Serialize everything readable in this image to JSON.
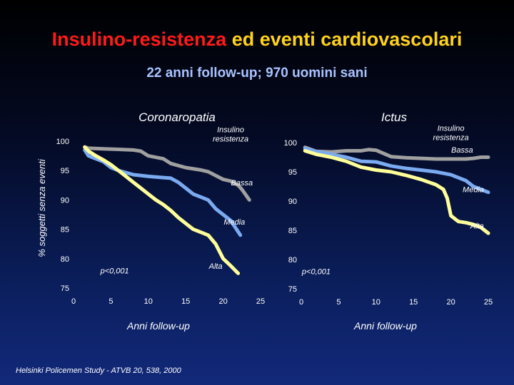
{
  "title_part1": "Insulino-resistenza",
  "title_part2": " ed eventi cardiovascolari",
  "subtitle": "22 anni follow-up; 970 uomini sani",
  "source": "Helsinki Policemen Study - ATVB 20, 538, 2000",
  "colors": {
    "bassa": "#a0a0a0",
    "media": "#7aaaf0",
    "alta": "#ffff99"
  },
  "chart_data": [
    {
      "type": "line",
      "title": "Coronaropatia",
      "xlabel": "Anni follow-up",
      "ylabel": "% soggetti senza eventi",
      "xlim": [
        0,
        25
      ],
      "ylim": [
        75,
        100
      ],
      "xticks": [
        0,
        5,
        10,
        15,
        20,
        25
      ],
      "yticks": [
        75,
        80,
        85,
        90,
        95,
        100
      ],
      "annotations": [
        {
          "text": "Insulino\nresistenza",
          "x": 21.0,
          "y": 101.5
        },
        {
          "text": "p<0,001",
          "x": 5.5,
          "y": 77.5
        }
      ],
      "series": [
        {
          "name": "Bassa",
          "label_x": 22.5,
          "label_y": 92.5,
          "x": [
            1.5,
            2,
            4,
            6,
            8,
            9,
            10,
            12,
            13,
            15,
            17,
            18,
            20,
            21,
            22,
            22.5,
            23.5
          ],
          "y": [
            99.0,
            98.8,
            98.7,
            98.6,
            98.5,
            98.3,
            97.5,
            97.0,
            96.2,
            95.5,
            95.1,
            94.8,
            93.5,
            93.2,
            92.5,
            91.8,
            90.0
          ]
        },
        {
          "name": "Media",
          "label_x": 21.5,
          "label_y": 85.8,
          "x": [
            1.5,
            2,
            3,
            4,
            5,
            6,
            8,
            10,
            12,
            13,
            14,
            15,
            16,
            18,
            19,
            20,
            21,
            22.3
          ],
          "y": [
            98.5,
            97.5,
            97.0,
            96.5,
            95.5,
            95.0,
            94.3,
            94.0,
            93.8,
            93.7,
            93.0,
            92.0,
            91.0,
            90.0,
            88.5,
            87.5,
            86.5,
            84.0
          ]
        },
        {
          "name": "Alta",
          "label_x": 19.0,
          "label_y": 78.3,
          "x": [
            1.5,
            2,
            3,
            4,
            5,
            6,
            7,
            8,
            9,
            10,
            11,
            12,
            13,
            14,
            15,
            16,
            17,
            18,
            19,
            20,
            21,
            22
          ],
          "y": [
            99.0,
            98.3,
            97.5,
            96.8,
            96.0,
            95.0,
            94.0,
            93.0,
            92.0,
            91.0,
            90.0,
            89.2,
            88.2,
            87.0,
            86.0,
            85.0,
            84.5,
            84.0,
            82.5,
            80.0,
            78.8,
            77.5
          ]
        }
      ]
    },
    {
      "type": "line",
      "title": "Ictus",
      "xlabel": "Anni follow-up",
      "ylabel": "",
      "xlim": [
        0,
        25
      ],
      "ylim": [
        75,
        100
      ],
      "xticks": [
        0,
        5,
        10,
        15,
        20,
        25
      ],
      "yticks": [
        75,
        80,
        85,
        90,
        95,
        100
      ],
      "annotations": [
        {
          "text": "Insulino\nresistenza",
          "x": 20.0,
          "y": 102.0
        },
        {
          "text": "p<0,001",
          "x": 2.0,
          "y": 77.5
        }
      ],
      "series": [
        {
          "name": "Bassa",
          "label_x": 21.5,
          "label_y": 98.3,
          "x": [
            0.5,
            2,
            4,
            6,
            8,
            9,
            10,
            12,
            14,
            16,
            18,
            20,
            21,
            22,
            23,
            24,
            25
          ],
          "y": [
            99.2,
            98.5,
            98.4,
            98.6,
            98.6,
            98.8,
            98.7,
            97.6,
            97.4,
            97.3,
            97.2,
            97.2,
            97.2,
            97.2,
            97.3,
            97.5,
            97.5
          ]
        },
        {
          "name": "Media",
          "label_x": 23.0,
          "label_y": 91.5,
          "x": [
            0.5,
            2,
            4,
            6,
            8,
            10,
            12,
            14,
            16,
            18,
            20,
            21,
            22,
            23,
            24,
            25
          ],
          "y": [
            99.0,
            98.5,
            98.0,
            97.5,
            96.8,
            96.7,
            96.0,
            95.6,
            95.3,
            95.0,
            94.5,
            94.0,
            93.5,
            92.5,
            92.0,
            91.5
          ]
        },
        {
          "name": "Alta",
          "label_x": 23.5,
          "label_y": 85.3,
          "x": [
            0.5,
            2,
            4,
            6,
            8,
            10,
            12,
            14,
            16,
            18,
            19,
            19.5,
            20,
            21,
            22,
            23,
            24,
            25
          ],
          "y": [
            98.6,
            98.0,
            97.5,
            96.8,
            95.8,
            95.3,
            95.0,
            94.4,
            93.7,
            92.8,
            92.0,
            90.5,
            87.5,
            86.5,
            86.3,
            86.0,
            85.5,
            84.5
          ]
        }
      ]
    }
  ]
}
